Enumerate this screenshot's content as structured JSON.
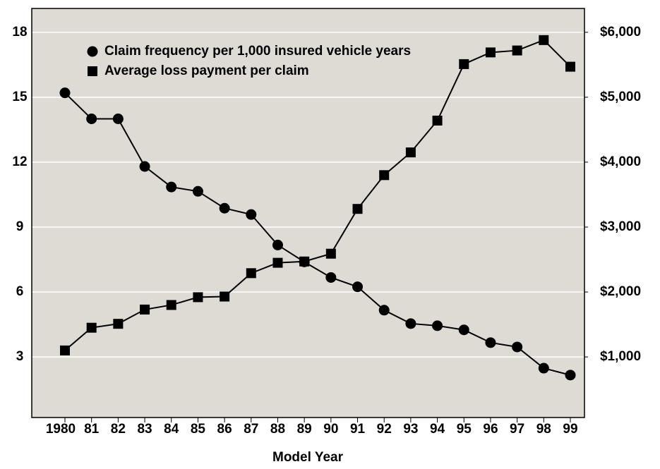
{
  "chart_data": {
    "type": "line",
    "x_label": "Model Year",
    "categories": [
      "1980",
      "81",
      "82",
      "83",
      "84",
      "85",
      "86",
      "87",
      "88",
      "89",
      "90",
      "91",
      "92",
      "93",
      "94",
      "95",
      "96",
      "97",
      "98",
      "99"
    ],
    "series": [
      {
        "name": "Claim frequency per 1,000 insured vehicle years",
        "color": "#000000",
        "marker": "circle",
        "values": [
          15.2,
          14.0,
          14.0,
          11.8,
          10.85,
          10.65,
          9.87,
          9.58,
          8.17,
          7.39,
          6.67,
          6.24,
          5.16,
          4.54,
          4.44,
          4.25,
          3.66,
          3.46,
          2.48,
          2.16
        ]
      },
      {
        "name": "Average loss payment per claim",
        "color": "#000000",
        "marker": "square",
        "axis": "y2",
        "values": [
          1100,
          1450,
          1510,
          1730,
          1800,
          1920,
          1930,
          2290,
          2450,
          2470,
          2590,
          3280,
          3800,
          4150,
          4640,
          5510,
          5690,
          5720,
          5880,
          5470
        ]
      }
    ],
    "ylim": [
      0.2,
      19.1
    ],
    "yticks": [
      3,
      6,
      9,
      12,
      15,
      18
    ],
    "y2lim": [
      67,
      6367
    ],
    "y2ticks": [
      {
        "value": 1000,
        "label": "$1,000"
      },
      {
        "value": 2000,
        "label": "$2,000"
      },
      {
        "value": 3000,
        "label": "$3,000"
      },
      {
        "value": 4000,
        "label": "$4,000"
      },
      {
        "value": 5000,
        "label": "$5,000"
      },
      {
        "value": 6000,
        "label": "$6,000"
      }
    ],
    "grid": true,
    "legend": "upper left",
    "background": "#dedbd5"
  }
}
